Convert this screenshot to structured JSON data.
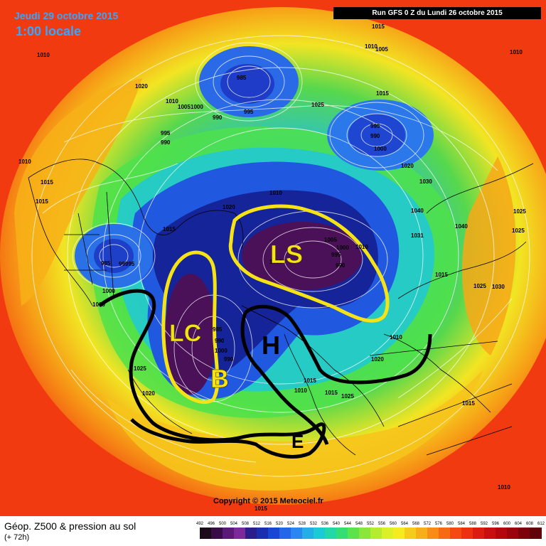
{
  "header": {
    "date": "Jeudi 29 octobre 2015",
    "time": "1:00 locale",
    "run": "Run GFS 0 Z du Lundi 26 octobre 2015"
  },
  "footer": {
    "copyright": "Copyright © 2015 Meteociel.fr",
    "parameter": "Géop. Z500 & pression au sol",
    "forecast_hour": "(+ 72h)"
  },
  "annotations": {
    "ls": "LS",
    "lc": "LC",
    "b": "B",
    "h": "H",
    "e": "E"
  },
  "colors": {
    "ocean_red": "#f23a10",
    "orange": "#f7a417",
    "yellow": "#f5f021",
    "green": "#4fe24a",
    "cyan": "#20c8d8",
    "blue": "#2058e0",
    "navy": "#16249a",
    "purple": "#4a1058",
    "annotation_yellow": "#f6e316",
    "annotation_black": "#000000"
  },
  "isobar_labels": [
    "1010",
    "1020",
    "1010",
    "1005",
    "1000",
    "990",
    "985",
    "995",
    "995",
    "990",
    "1010",
    "1015",
    "1025",
    "1015",
    "1010",
    "1005",
    "995",
    "990",
    "1000",
    "1015",
    "1010",
    "1015",
    "1020",
    "1030",
    "1020",
    "1040",
    "1025",
    "1015",
    "1040",
    "1025",
    "1031",
    "985",
    "99995",
    "1000",
    "1010",
    "1025",
    "1020",
    "1010",
    "1015",
    "1005",
    "995",
    "990",
    "1010",
    "1000",
    "990",
    "1000",
    "990",
    "985",
    "1025",
    "1010",
    "1020",
    "1025",
    "1015",
    "1015",
    "1015",
    "1010",
    "1010",
    "1015",
    "1015",
    "1030"
  ],
  "scale": {
    "ticks": [
      "492",
      "496",
      "500",
      "504",
      "508",
      "512",
      "516",
      "520",
      "524",
      "528",
      "532",
      "536",
      "540",
      "544",
      "548",
      "552",
      "556",
      "560",
      "564",
      "568",
      "572",
      "576",
      "580",
      "584",
      "588",
      "592",
      "596",
      "600",
      "604",
      "608",
      "612"
    ],
    "colors": [
      "#1a0a1a",
      "#3a0c46",
      "#5c1a78",
      "#7a2a9a",
      "#2a1e8c",
      "#1a2eb0",
      "#1a46d6",
      "#2466e8",
      "#2a86f0",
      "#24aee8",
      "#1ccad6",
      "#22d8a6",
      "#34de72",
      "#5ce24a",
      "#8ae63a",
      "#b6ec30",
      "#dcf028",
      "#f4ec20",
      "#f6cc1c",
      "#f8ae18",
      "#f88c16",
      "#f66a14",
      "#f44a12",
      "#ec3010",
      "#dc1c10",
      "#c80e10",
      "#b4060e",
      "#9a040c",
      "#7e020a",
      "#600208"
    ]
  }
}
